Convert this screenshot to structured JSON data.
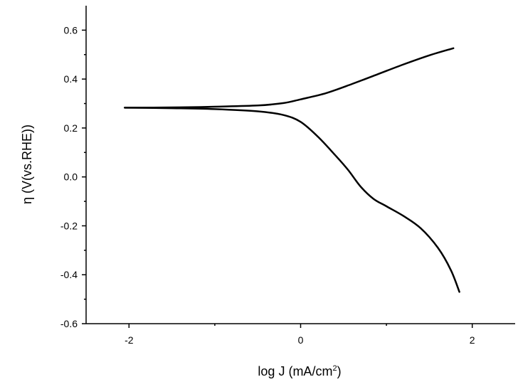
{
  "chart_data": {
    "type": "line",
    "title": "",
    "xlabel_main": "log J (mA/cm",
    "xlabel_sup": "2",
    "xlabel_close": ")",
    "ylabel": "η (V(vs.RHE))",
    "xlim": [
      -2.5,
      2.5
    ],
    "ylim": [
      -0.6,
      0.7
    ],
    "x_major_ticks": [
      -2,
      0,
      2
    ],
    "x_tick_labels": [
      "-2",
      "0",
      "2"
    ],
    "x_minor_ticks": [
      -1,
      1
    ],
    "y_major_ticks": [
      0.6,
      0.4,
      0.2,
      0.0,
      -0.2,
      -0.4,
      -0.6
    ],
    "y_tick_labels": [
      "0.6",
      "0.4",
      "0.2",
      "0.0",
      "-0.2",
      "-0.4",
      "-0.6"
    ],
    "y_minor_ticks": [
      0.5,
      0.3,
      0.1,
      -0.1,
      -0.3,
      -0.5
    ],
    "grid": false,
    "series": [
      {
        "x": [
          -2.05,
          -1.5,
          -1.0,
          -0.5,
          -0.2,
          0.0,
          0.3,
          0.6,
          0.9,
          1.2,
          1.5,
          1.78
        ],
        "values": [
          0.283,
          0.284,
          0.287,
          0.292,
          0.302,
          0.317,
          0.343,
          0.38,
          0.42,
          0.46,
          0.497,
          0.526
        ]
      },
      {
        "x": [
          -2.05,
          -1.5,
          -1.0,
          -0.5,
          -0.2,
          0.0,
          0.2,
          0.4,
          0.55,
          0.7,
          0.85,
          1.0,
          1.2,
          1.4,
          1.6,
          1.75,
          1.85
        ],
        "values": [
          0.283,
          0.281,
          0.277,
          0.268,
          0.253,
          0.225,
          0.165,
          0.09,
          0.03,
          -0.04,
          -0.09,
          -0.12,
          -0.16,
          -0.21,
          -0.29,
          -0.38,
          -0.47
        ]
      }
    ]
  }
}
